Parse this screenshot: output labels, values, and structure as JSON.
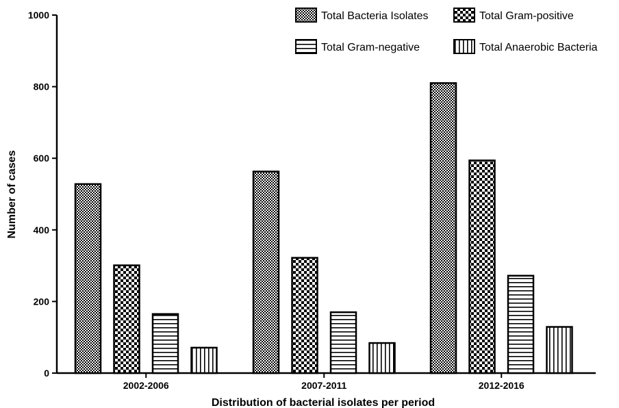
{
  "chart_data": {
    "type": "bar",
    "xlabel": "Distribution of bacterial isolates per period",
    "ylabel": "Number of cases",
    "ylim": [
      0,
      1000
    ],
    "yticks": [
      0,
      200,
      400,
      600,
      800,
      1000
    ],
    "categories": [
      "2002-2006",
      "2007-2011",
      "2012-2016"
    ],
    "series": [
      {
        "name": "Total Bacteria Isolates",
        "pattern": "dots",
        "values": [
          528,
          563,
          810
        ]
      },
      {
        "name": "Total Gram-positive",
        "pattern": "checker",
        "values": [
          301,
          322,
          594
        ]
      },
      {
        "name": "Total Gram-negative",
        "pattern": "horizontal-lines",
        "values": [
          165,
          170,
          272
        ]
      },
      {
        "name": "Total Anaerobic Bacteria",
        "pattern": "vertical-lines",
        "values": [
          71,
          84,
          129
        ]
      }
    ],
    "legend_position": "top-right",
    "grid": false
  }
}
